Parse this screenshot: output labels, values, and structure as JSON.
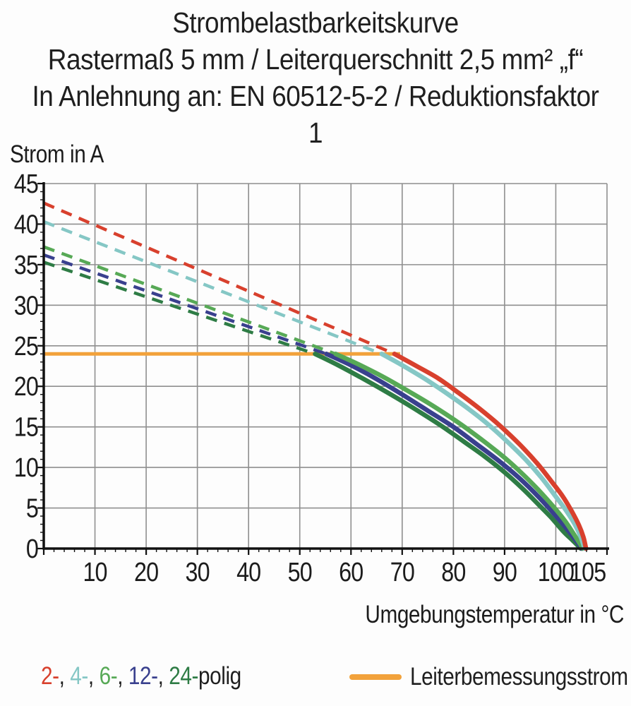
{
  "title": {
    "line1": "Strombelastbarkeitskurve",
    "line2": "Rastermaß 5 mm / Leiterquerschnitt 2,5 mm² „f“",
    "line3": "In Anlehnung an: EN 60512-5-2 / Reduktionsfaktor 1"
  },
  "chart_data": {
    "type": "line",
    "title": "Strombelastbarkeitskurve",
    "subtitle": "Rastermaß 5 mm / Leiterquerschnitt 2,5 mm² „f“",
    "standard_note": "In Anlehnung an: EN 60512-5-2 / Reduktionsfaktor 1",
    "ylabel": "Strom in A",
    "xlabel": "Umgebungstemperatur in °C",
    "xlim": [
      0,
      110
    ],
    "ylim": [
      0,
      45
    ],
    "x_ticks": [
      10,
      20,
      30,
      40,
      50,
      60,
      70,
      80,
      90,
      100,
      105
    ],
    "y_ticks": [
      0,
      5,
      10,
      15,
      20,
      25,
      30,
      35,
      40,
      45
    ],
    "x_gridlines": [
      10,
      20,
      30,
      40,
      50,
      60,
      70,
      80,
      90,
      100,
      110
    ],
    "y_gridlines": [
      5,
      10,
      15,
      20,
      25,
      30,
      35,
      40,
      45
    ],
    "x_minor_step": 2,
    "y_minor_step": 1,
    "grid": true,
    "legend_position": "bottom",
    "colors": {
      "grid": "#8f8f8f",
      "axis": "#111111",
      "text": "#1c1c1c"
    },
    "rated_line": {
      "label": "Leiterbemessungsstrom",
      "current_A": 24,
      "x_start": 0,
      "x_end": 69.6,
      "color": "#f2a23b"
    },
    "series": [
      {
        "name": "2-polig",
        "color": "#d8402d",
        "dashed": [
          [
            0,
            42.6
          ],
          [
            68.5,
            24
          ]
        ],
        "solid": [
          [
            68.5,
            24
          ],
          [
            72.5,
            22.6
          ],
          [
            77,
            21.0
          ],
          [
            81,
            19.2
          ],
          [
            85,
            17.3
          ],
          [
            89,
            15.2
          ],
          [
            93,
            12.8
          ],
          [
            96.5,
            10.4
          ],
          [
            99.5,
            8.0
          ],
          [
            101.5,
            6.3
          ],
          [
            103.2,
            4.5
          ],
          [
            104.5,
            2.9
          ],
          [
            105.4,
            1.4
          ],
          [
            105.9,
            0
          ]
        ]
      },
      {
        "name": "4-polig",
        "color": "#85c7c5",
        "dashed": [
          [
            0,
            40.3
          ],
          [
            66,
            24
          ]
        ],
        "solid": [
          [
            66,
            24
          ],
          [
            70,
            22.6
          ],
          [
            74.5,
            20.9
          ],
          [
            79,
            19.0
          ],
          [
            83,
            17.2
          ],
          [
            87,
            15.2
          ],
          [
            91,
            12.9
          ],
          [
            94.5,
            10.7
          ],
          [
            97.5,
            8.5
          ],
          [
            100,
            6.4
          ],
          [
            102,
            4.7
          ],
          [
            103.7,
            3.0
          ],
          [
            104.9,
            1.4
          ],
          [
            105.6,
            0
          ]
        ]
      },
      {
        "name": "6-polig",
        "color": "#57a956",
        "dashed": [
          [
            0,
            37.2
          ],
          [
            57,
            24
          ]
        ],
        "solid": [
          [
            57,
            24
          ],
          [
            61.5,
            22.7
          ],
          [
            66.5,
            21.1
          ],
          [
            71.5,
            19.3
          ],
          [
            76.5,
            17.4
          ],
          [
            81.5,
            15.3
          ],
          [
            86,
            13.2
          ],
          [
            90,
            11.2
          ],
          [
            93.5,
            9.2
          ],
          [
            96.5,
            7.3
          ],
          [
            99.5,
            5.2
          ],
          [
            101.8,
            3.4
          ],
          [
            103.6,
            1.7
          ],
          [
            105.3,
            0
          ]
        ]
      },
      {
        "name": "12-polig",
        "color": "#39408e",
        "dashed": [
          [
            0,
            36.2
          ],
          [
            55.2,
            24
          ]
        ],
        "solid": [
          [
            55.2,
            24
          ],
          [
            60,
            22.6
          ],
          [
            65,
            20.9
          ],
          [
            70,
            19.0
          ],
          [
            75,
            17.0
          ],
          [
            80,
            15.0
          ],
          [
            84.5,
            12.9
          ],
          [
            88.5,
            11.0
          ],
          [
            92.5,
            8.9
          ],
          [
            95.5,
            7.1
          ],
          [
            98.5,
            5.1
          ],
          [
            101,
            3.3
          ],
          [
            103.2,
            1.6
          ],
          [
            105.1,
            0
          ]
        ]
      },
      {
        "name": "24-polig",
        "color": "#2e7c45",
        "dashed": [
          [
            0,
            35.3
          ],
          [
            53,
            24
          ]
        ],
        "solid": [
          [
            53,
            24
          ],
          [
            57.5,
            22.6
          ],
          [
            62.5,
            20.9
          ],
          [
            67.5,
            19.1
          ],
          [
            72.5,
            17.2
          ],
          [
            77.5,
            15.2
          ],
          [
            82,
            13.2
          ],
          [
            86,
            11.4
          ],
          [
            90,
            9.4
          ],
          [
            93.5,
            7.4
          ],
          [
            96.5,
            5.5
          ],
          [
            99,
            3.9
          ],
          [
            101.5,
            2.1
          ],
          [
            103.3,
            1.0
          ],
          [
            104.9,
            0
          ]
        ]
      }
    ]
  },
  "legend": {
    "poles": [
      {
        "label": "2-",
        "color": "#d8402d"
      },
      {
        "label": "4-",
        "color": "#85c7c5"
      },
      {
        "label": "6-",
        "color": "#57a956"
      },
      {
        "label": "12-",
        "color": "#39408e"
      },
      {
        "label": "24-",
        "color": "#2e7c45"
      }
    ],
    "separator": ", ",
    "poles_suffix": "polig",
    "rated": {
      "label": "Leiterbemessungsstrom",
      "color": "#f2a23b"
    }
  }
}
